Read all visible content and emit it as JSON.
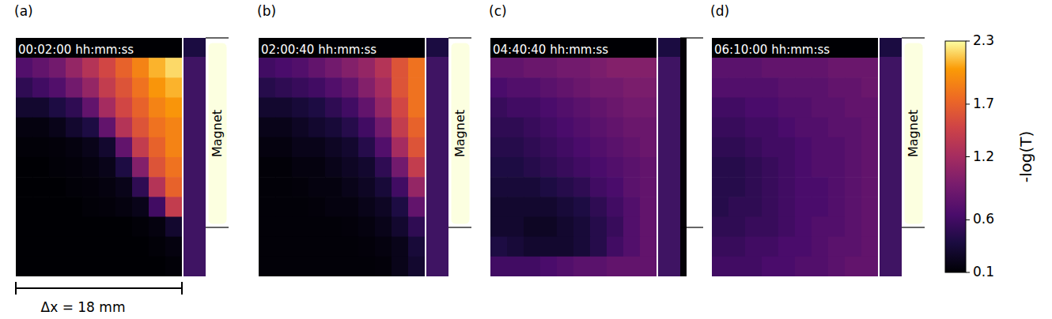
{
  "chart_data": {
    "type": "heatmap",
    "tick_labels": false,
    "scale_bar": "Δx = 18 mm",
    "colorbar": {
      "label": "-log(T)",
      "range": [
        0.1,
        2.3
      ],
      "ticks": [
        0.1,
        0.6,
        1.2,
        1.7,
        2.3
      ]
    },
    "panels": [
      {
        "label": "(a)",
        "time": "00:02:00 hh:mm:ss",
        "magnet": "Magnet",
        "cells": [
          [
            0.1,
            0.1,
            0.1,
            0.1,
            0.1,
            0.1,
            0.1,
            0.1,
            0.1,
            0.1
          ],
          [
            0.7,
            0.8,
            0.9,
            1.1,
            1.3,
            1.5,
            1.7,
            1.9,
            2.1,
            2.2
          ],
          [
            0.5,
            0.6,
            0.7,
            0.9,
            1.1,
            1.4,
            1.6,
            1.8,
            2.0,
            2.1
          ],
          [
            0.3,
            0.3,
            0.4,
            0.5,
            0.8,
            1.2,
            1.5,
            1.7,
            1.9,
            2.0
          ],
          [
            0.15,
            0.15,
            0.2,
            0.3,
            0.4,
            0.8,
            1.3,
            1.6,
            1.8,
            1.9
          ],
          [
            0.12,
            0.12,
            0.13,
            0.15,
            0.2,
            0.3,
            0.8,
            1.4,
            1.7,
            1.9
          ],
          [
            0.1,
            0.1,
            0.12,
            0.13,
            0.15,
            0.2,
            0.4,
            1.0,
            1.6,
            1.8
          ],
          [
            0.1,
            0.1,
            0.1,
            0.12,
            0.13,
            0.15,
            0.2,
            0.5,
            1.3,
            1.7
          ],
          [
            0.1,
            0.1,
            0.1,
            0.1,
            0.12,
            0.13,
            0.15,
            0.2,
            0.6,
            1.4
          ],
          [
            0.1,
            0.1,
            0.1,
            0.1,
            0.1,
            0.1,
            0.1,
            0.12,
            0.15,
            0.3
          ],
          [
            0.1,
            0.1,
            0.1,
            0.1,
            0.1,
            0.1,
            0.1,
            0.1,
            0.12,
            0.15
          ],
          [
            0.1,
            0.1,
            0.1,
            0.1,
            0.1,
            0.1,
            0.1,
            0.1,
            0.1,
            0.12
          ]
        ]
      },
      {
        "label": "(b)",
        "time": "02:00:40 hh:mm:ss",
        "magnet": "Magnet",
        "cells": [
          [
            0.1,
            0.1,
            0.1,
            0.1,
            0.1,
            0.1,
            0.1,
            0.1,
            0.1,
            0.1
          ],
          [
            0.6,
            0.65,
            0.7,
            0.8,
            0.9,
            1.0,
            1.1,
            1.3,
            1.6,
            1.8
          ],
          [
            0.45,
            0.5,
            0.55,
            0.6,
            0.7,
            0.8,
            1.0,
            1.2,
            1.6,
            1.8
          ],
          [
            0.3,
            0.3,
            0.35,
            0.4,
            0.5,
            0.6,
            0.8,
            1.1,
            1.5,
            1.8
          ],
          [
            0.2,
            0.2,
            0.25,
            0.3,
            0.35,
            0.45,
            0.6,
            0.9,
            1.4,
            1.7
          ],
          [
            0.15,
            0.15,
            0.2,
            0.2,
            0.25,
            0.3,
            0.45,
            0.7,
            1.2,
            1.6
          ],
          [
            0.12,
            0.12,
            0.15,
            0.15,
            0.2,
            0.25,
            0.3,
            0.5,
            0.9,
            1.4
          ],
          [
            0.12,
            0.12,
            0.13,
            0.15,
            0.15,
            0.2,
            0.25,
            0.35,
            0.6,
            1.1
          ],
          [
            0.12,
            0.12,
            0.12,
            0.13,
            0.15,
            0.15,
            0.2,
            0.25,
            0.4,
            0.8
          ],
          [
            0.12,
            0.12,
            0.12,
            0.12,
            0.12,
            0.13,
            0.15,
            0.2,
            0.3,
            0.5
          ],
          [
            0.12,
            0.12,
            0.12,
            0.12,
            0.12,
            0.12,
            0.13,
            0.15,
            0.2,
            0.35
          ],
          [
            0.12,
            0.12,
            0.12,
            0.12,
            0.12,
            0.12,
            0.12,
            0.13,
            0.2,
            0.3
          ]
        ]
      },
      {
        "label": "(c)",
        "time": "04:40:40 hh:mm:ss",
        "cells": [
          [
            0.1,
            0.1,
            0.1,
            0.1,
            0.1,
            0.1,
            0.1,
            0.1,
            0.1,
            0.1
          ],
          [
            0.8,
            0.8,
            0.85,
            0.85,
            0.9,
            0.9,
            0.95,
            1.0,
            1.0,
            1.0
          ],
          [
            0.65,
            0.7,
            0.7,
            0.75,
            0.8,
            0.85,
            0.9,
            0.9,
            0.95,
            0.95
          ],
          [
            0.55,
            0.6,
            0.6,
            0.65,
            0.7,
            0.75,
            0.8,
            0.85,
            0.9,
            0.9
          ],
          [
            0.5,
            0.5,
            0.55,
            0.6,
            0.65,
            0.7,
            0.75,
            0.8,
            0.85,
            0.85
          ],
          [
            0.45,
            0.45,
            0.5,
            0.55,
            0.6,
            0.65,
            0.7,
            0.75,
            0.8,
            0.85
          ],
          [
            0.4,
            0.4,
            0.45,
            0.5,
            0.55,
            0.6,
            0.65,
            0.7,
            0.75,
            0.8
          ],
          [
            0.35,
            0.35,
            0.35,
            0.4,
            0.45,
            0.5,
            0.6,
            0.65,
            0.75,
            0.8
          ],
          [
            0.3,
            0.3,
            0.3,
            0.3,
            0.35,
            0.4,
            0.5,
            0.6,
            0.7,
            0.8
          ],
          [
            0.3,
            0.3,
            0.25,
            0.25,
            0.3,
            0.35,
            0.45,
            0.55,
            0.7,
            0.8
          ],
          [
            0.4,
            0.35,
            0.3,
            0.3,
            0.3,
            0.35,
            0.45,
            0.6,
            0.7,
            0.8
          ],
          [
            0.6,
            0.6,
            0.6,
            0.65,
            0.7,
            0.75,
            0.75,
            0.8,
            0.8,
            0.8
          ]
        ]
      },
      {
        "label": "(d)",
        "time": "06:10:00 hh:mm:ss",
        "magnet": "Magnet",
        "cells": [
          [
            0.1,
            0.1,
            0.1,
            0.1,
            0.1,
            0.1,
            0.1,
            0.1,
            0.1,
            0.1
          ],
          [
            0.75,
            0.75,
            0.75,
            0.8,
            0.8,
            0.8,
            0.8,
            0.85,
            0.85,
            0.85
          ],
          [
            0.7,
            0.7,
            0.7,
            0.7,
            0.75,
            0.75,
            0.75,
            0.8,
            0.8,
            0.85
          ],
          [
            0.6,
            0.6,
            0.65,
            0.65,
            0.7,
            0.7,
            0.75,
            0.75,
            0.8,
            0.8
          ],
          [
            0.55,
            0.55,
            0.6,
            0.6,
            0.65,
            0.7,
            0.7,
            0.75,
            0.75,
            0.8
          ],
          [
            0.5,
            0.5,
            0.55,
            0.6,
            0.6,
            0.65,
            0.7,
            0.7,
            0.75,
            0.8
          ],
          [
            0.45,
            0.45,
            0.5,
            0.55,
            0.6,
            0.65,
            0.7,
            0.7,
            0.75,
            0.8
          ],
          [
            0.45,
            0.45,
            0.5,
            0.55,
            0.6,
            0.65,
            0.65,
            0.7,
            0.75,
            0.8
          ],
          [
            0.45,
            0.5,
            0.5,
            0.55,
            0.6,
            0.65,
            0.65,
            0.7,
            0.75,
            0.8
          ],
          [
            0.5,
            0.5,
            0.55,
            0.55,
            0.6,
            0.65,
            0.7,
            0.7,
            0.75,
            0.8
          ],
          [
            0.55,
            0.55,
            0.6,
            0.6,
            0.65,
            0.65,
            0.7,
            0.75,
            0.75,
            0.8
          ],
          [
            0.6,
            0.6,
            0.6,
            0.65,
            0.65,
            0.7,
            0.7,
            0.75,
            0.8,
            0.8
          ]
        ]
      }
    ]
  }
}
